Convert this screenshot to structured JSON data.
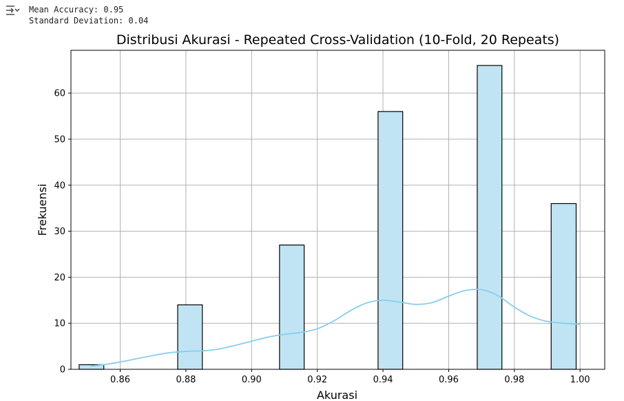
{
  "output": {
    "icon": "output-collapse-icon",
    "lines": [
      "Mean Accuracy: 0.95",
      "Standard Deviation: 0.04"
    ]
  },
  "chart_data": {
    "type": "bar",
    "title": "Distribusi Akurasi - Repeated Cross-Validation (10-Fold, 20 Repeats)",
    "xlabel": "Akurasi",
    "ylabel": "Frekuensi",
    "xlim": [
      0.845,
      1.0075
    ],
    "ylim": [
      0,
      69.3
    ],
    "x_ticks": [
      0.86,
      0.88,
      0.9,
      0.92,
      0.94,
      0.96,
      0.98,
      1.0
    ],
    "x_tick_labels": [
      "0.86",
      "0.88",
      "0.90",
      "0.92",
      "0.94",
      "0.96",
      "0.98",
      "1.00"
    ],
    "y_ticks": [
      0,
      10,
      20,
      30,
      40,
      50,
      60
    ],
    "y_tick_labels": [
      "0",
      "10",
      "20",
      "30",
      "40",
      "50",
      "60"
    ],
    "bins": [
      {
        "x0": 0.8475,
        "x1": 0.855,
        "count": 1
      },
      {
        "x0": 0.8775,
        "x1": 0.885,
        "count": 14
      },
      {
        "x0": 0.9085,
        "x1": 0.916,
        "count": 27
      },
      {
        "x0": 0.9385,
        "x1": 0.946,
        "count": 56
      },
      {
        "x0": 0.9687,
        "x1": 0.9762,
        "count": 66
      },
      {
        "x0": 0.9912,
        "x1": 0.9988,
        "count": 36
      }
    ],
    "kde": {
      "x": [
        0.851,
        0.855,
        0.86,
        0.865,
        0.87,
        0.875,
        0.88,
        0.885,
        0.89,
        0.895,
        0.9,
        0.905,
        0.91,
        0.915,
        0.92,
        0.925,
        0.93,
        0.935,
        0.94,
        0.945,
        0.95,
        0.955,
        0.96,
        0.965,
        0.97,
        0.975,
        0.98,
        0.985,
        0.99,
        0.995,
        1.0
      ],
      "y": [
        0.7,
        1.0,
        1.6,
        2.3,
        3.0,
        3.6,
        3.9,
        4.0,
        4.4,
        5.2,
        6.1,
        7.0,
        7.6,
        8.0,
        8.8,
        10.5,
        12.7,
        14.4,
        15.0,
        14.6,
        14.1,
        14.5,
        15.9,
        17.1,
        17.3,
        16.0,
        13.5,
        11.5,
        10.4,
        10.0,
        9.8
      ]
    },
    "bar_color": "#c1e4f4",
    "bar_edge_color": "#000000",
    "kde_color": "#87ceeb",
    "grid": true,
    "legend": "none"
  }
}
